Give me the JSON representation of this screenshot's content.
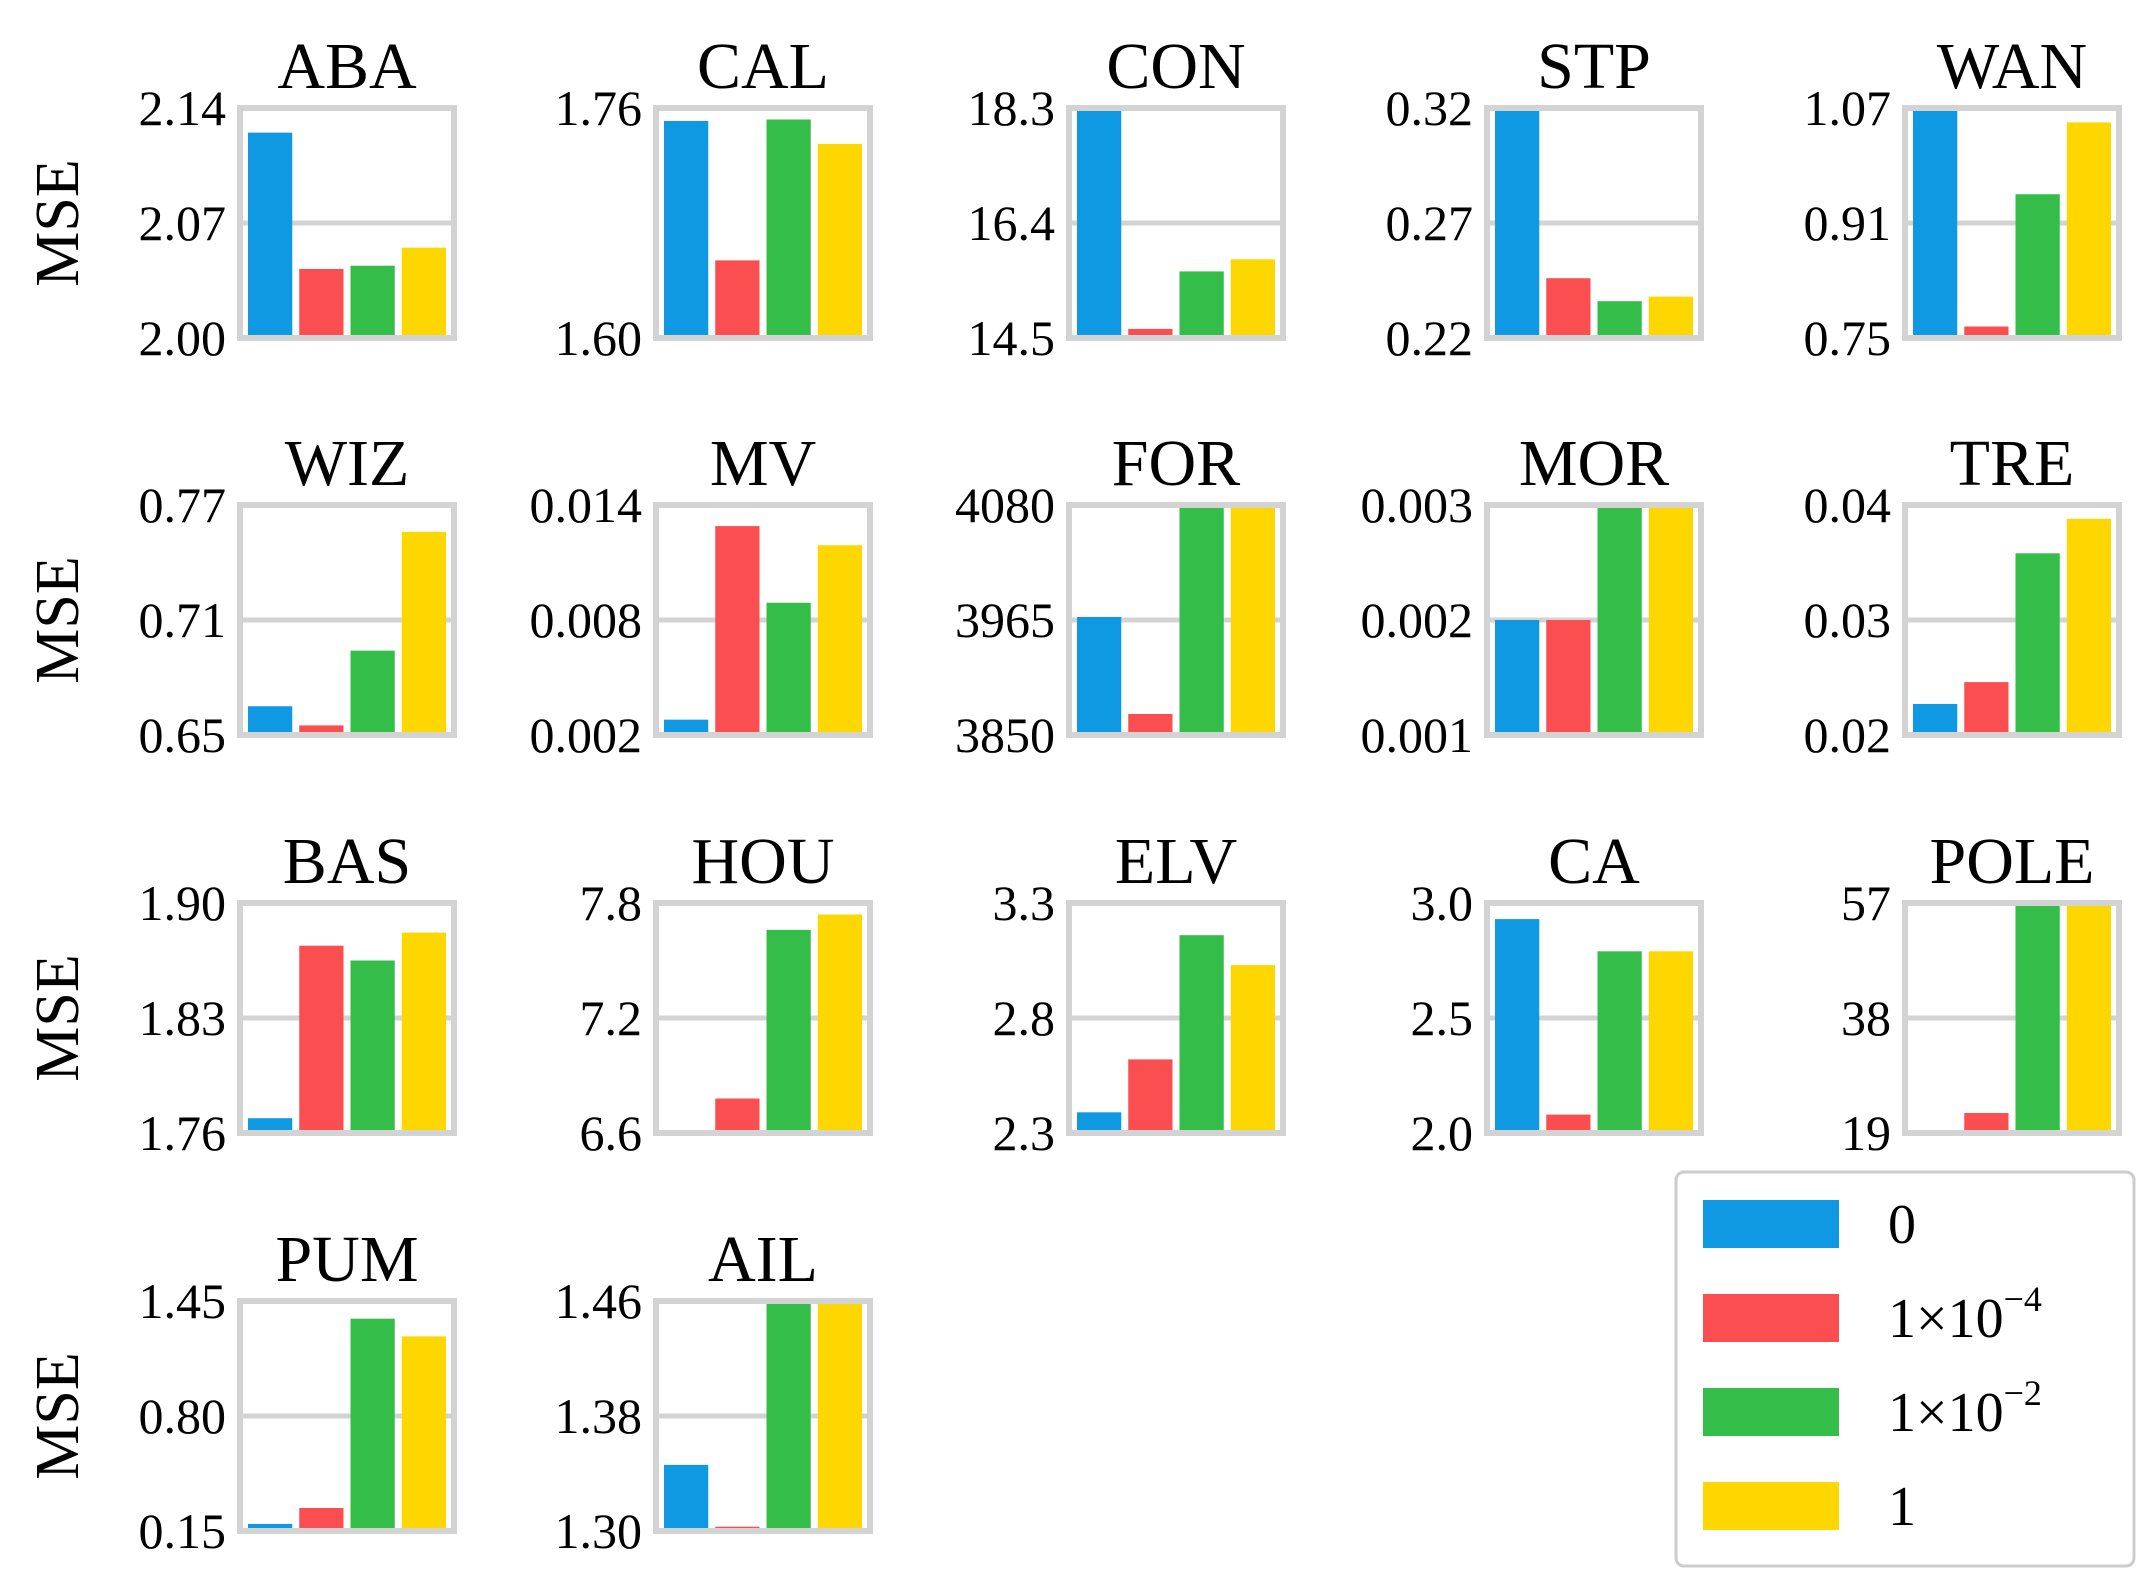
{
  "chart_data": {
    "type": "bar",
    "ylabel": "MSE",
    "series_names": [
      "0",
      "1e-4",
      "1e-2",
      "1"
    ],
    "colors": [
      "#0f99e3",
      "#fb4e50",
      "#34bd48",
      "#fed700"
    ],
    "legend": {
      "position": "bottom-right",
      "entries": [
        {
          "base": "0",
          "sup": ""
        },
        {
          "base": "1×10",
          "sup": "−4"
        },
        {
          "base": "1×10",
          "sup": "−2"
        },
        {
          "base": "1",
          "sup": ""
        }
      ]
    },
    "panels": [
      {
        "title": "ABA",
        "ylim": [
          2.0,
          2.14
        ],
        "ticks": [
          "2.00",
          "2.07",
          "2.14"
        ],
        "values": [
          2.125,
          2.042,
          2.044,
          2.055
        ]
      },
      {
        "title": "CAL",
        "ylim": [
          1.6,
          1.76
        ],
        "ticks": [
          "1.60",
          "1.76"
        ],
        "values": [
          1.751,
          1.654,
          1.752,
          1.735
        ]
      },
      {
        "title": "CON",
        "ylim": [
          14.5,
          18.3
        ],
        "ticks": [
          "14.5",
          "16.4",
          "18.3"
        ],
        "values": [
          18.3,
          14.65,
          15.6,
          15.8
        ]
      },
      {
        "title": "STP",
        "ylim": [
          0.22,
          0.32
        ],
        "ticks": [
          "0.22",
          "0.27",
          "0.32"
        ],
        "values": [
          0.32,
          0.246,
          0.236,
          0.238
        ]
      },
      {
        "title": "WAN",
        "ylim": [
          0.75,
          1.07
        ],
        "ticks": [
          "0.75",
          "0.91",
          "1.07"
        ],
        "values": [
          1.07,
          0.766,
          0.95,
          1.05
        ]
      },
      {
        "title": "WIZ",
        "ylim": [
          0.65,
          0.77
        ],
        "ticks": [
          "0.65",
          "0.71",
          "0.77"
        ],
        "values": [
          0.665,
          0.655,
          0.694,
          0.756
        ]
      },
      {
        "title": "MV",
        "ylim": [
          0.002,
          0.014
        ],
        "ticks": [
          "0.002",
          "0.008",
          "0.014"
        ],
        "values": [
          0.0028,
          0.0129,
          0.0089,
          0.0119
        ]
      },
      {
        "title": "FOR",
        "ylim": [
          3850,
          4080
        ],
        "ticks": [
          "3850",
          "3965",
          "4080"
        ],
        "values": [
          3968,
          3871,
          4080,
          4080
        ]
      },
      {
        "title": "MOR",
        "ylim": [
          0.001,
          0.003
        ],
        "ticks": [
          "0.001",
          "0.002",
          "0.003"
        ],
        "values": [
          0.002,
          0.002,
          0.003,
          0.003
        ]
      },
      {
        "title": "TRE",
        "ylim": [
          0.02,
          0.04
        ],
        "ticks": [
          "0.02",
          "0.03",
          "0.04"
        ],
        "values": [
          0.0227,
          0.0246,
          0.0358,
          0.0388
        ]
      },
      {
        "title": "BAS",
        "ylim": [
          1.76,
          1.9
        ],
        "ticks": [
          "1.76",
          "1.83",
          "1.90"
        ],
        "values": [
          1.769,
          1.874,
          1.865,
          1.882
        ]
      },
      {
        "title": "HOU",
        "ylim": [
          6.6,
          7.8
        ],
        "ticks": [
          "6.6",
          "7.2",
          "7.8"
        ],
        "values": [
          6.6,
          6.78,
          7.66,
          7.74
        ]
      },
      {
        "title": "ELV",
        "ylim": [
          2.3,
          3.3
        ],
        "ticks": [
          "2.3",
          "2.8",
          "3.3"
        ],
        "values": [
          2.39,
          2.62,
          3.16,
          3.03
        ]
      },
      {
        "title": "CA",
        "ylim": [
          2.0,
          3.0
        ],
        "ticks": [
          "2.0",
          "2.5",
          "3.0"
        ],
        "values": [
          2.93,
          2.08,
          2.79,
          2.79
        ]
      },
      {
        "title": "POLE",
        "ylim": [
          19,
          57
        ],
        "ticks": [
          "19",
          "38",
          "57"
        ],
        "values": [
          19.4,
          22.3,
          57,
          57
        ]
      },
      {
        "title": "PUM",
        "ylim": [
          0.15,
          1.45
        ],
        "ticks": [
          "0.15",
          "0.80",
          "1.45"
        ],
        "values": [
          0.19,
          0.28,
          1.35,
          1.25
        ]
      },
      {
        "title": "AIL",
        "ylim": [
          1.3,
          1.46
        ],
        "ticks": [
          "1.30",
          "1.38",
          "1.46"
        ],
        "values": [
          1.346,
          1.303,
          1.46,
          1.46
        ]
      }
    ]
  }
}
